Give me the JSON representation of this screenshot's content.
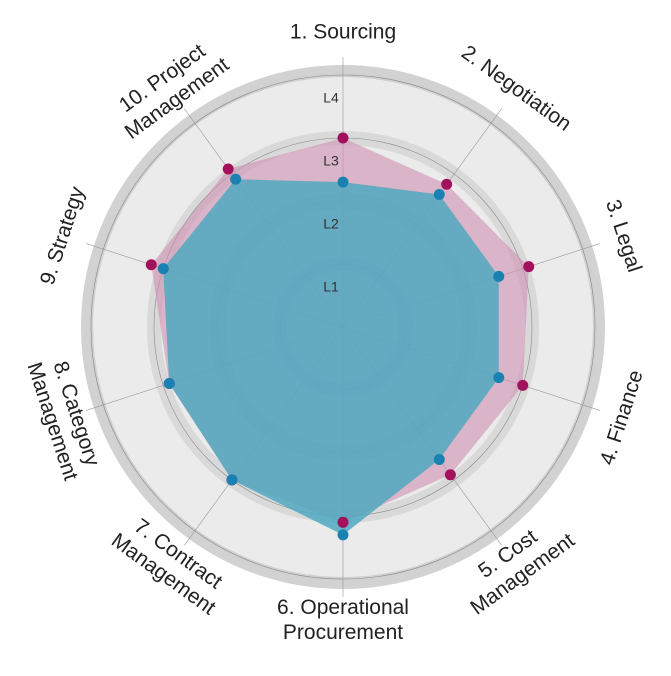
{
  "chart_data": {
    "type": "radar",
    "categories": [
      [
        "1. Sourcing"
      ],
      [
        "2. Negotiation"
      ],
      [
        "3. Legal"
      ],
      [
        "4. Finance"
      ],
      [
        "5. Cost",
        "Management"
      ],
      [
        "6. Operational",
        "Procurement"
      ],
      [
        "7. Contract",
        "Management"
      ],
      [
        "8. Category",
        "Management"
      ],
      [
        "9. Strategy"
      ],
      [
        "10. Project",
        "Management"
      ]
    ],
    "series": [
      {
        "color": "#a3105c",
        "fill": "#cf8fb0",
        "values": [
          3.0,
          2.8,
          3.1,
          3.0,
          2.9,
          3.1,
          3.0,
          2.9,
          3.2,
          3.1
        ]
      },
      {
        "color": "#1a82b2",
        "fill": "#4fa8bf",
        "values": [
          2.3,
          2.6,
          2.6,
          2.6,
          2.6,
          3.3,
          3.0,
          2.9,
          3.0,
          2.9
        ]
      }
    ],
    "rlim": [
      0,
      4
    ],
    "rticks": [
      {
        "value": 1,
        "label": "L1"
      },
      {
        "value": 2,
        "label": "L2"
      },
      {
        "value": 3,
        "label": "L3"
      },
      {
        "value": 4,
        "label": "L4"
      }
    ]
  }
}
